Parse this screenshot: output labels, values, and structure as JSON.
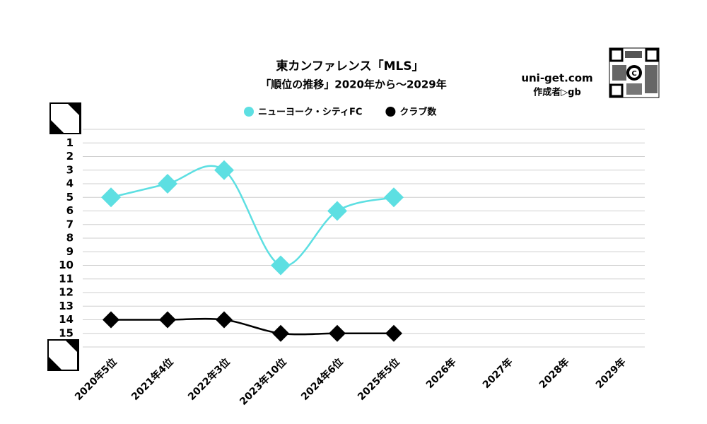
{
  "chart_data": {
    "type": "line",
    "title": "東カンファレンス「MLS」",
    "subtitle": "「順位の推移」2020年から～2029年",
    "brand": "uni-get.com",
    "author": "作成者▷gb",
    "categories": [
      "2020年5位",
      "2021年4位",
      "2022年3位",
      "2023年10位",
      "2024年6位",
      "2025年5位",
      "2026年",
      "2027年",
      "2028年",
      "2029年"
    ],
    "series": [
      {
        "name": "ニューヨーク・シティFC",
        "color": "#5ddfe2",
        "values": [
          5,
          4,
          3,
          10,
          6,
          5,
          null,
          null,
          null,
          null
        ]
      },
      {
        "name": "クラブ数",
        "color": "#000000",
        "values": [
          14,
          14,
          14,
          15,
          15,
          15,
          null,
          null,
          null,
          null
        ]
      }
    ],
    "ylim": [
      0,
      16
    ],
    "invert_y": true,
    "yticks": [
      1,
      2,
      3,
      4,
      5,
      6,
      7,
      8,
      9,
      10,
      11,
      12,
      13,
      14,
      15
    ],
    "grid": true,
    "legend": "top"
  }
}
